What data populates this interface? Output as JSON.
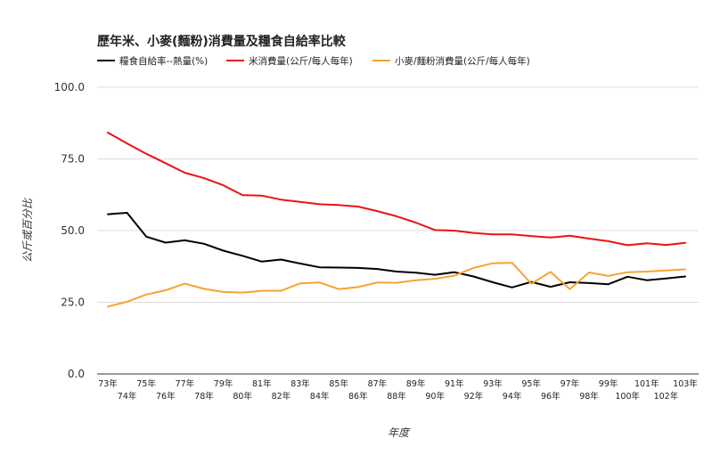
{
  "chart_data": {
    "type": "line",
    "title": "歷年米、小麥(麵粉)消費量及糧食自給率比較",
    "xlabel": "年度",
    "ylabel": "公斤或百分比",
    "ylim": [
      0,
      100
    ],
    "yticks": [
      "0.0",
      "25.0",
      "50.0",
      "75.0",
      "100.0"
    ],
    "ytick_values": [
      0,
      25,
      50,
      75,
      100
    ],
    "grid": true,
    "legend_position": "top-left",
    "categories": [
      "73年",
      "74年",
      "75年",
      "76年",
      "77年",
      "78年",
      "79年",
      "80年",
      "81年",
      "82年",
      "83年",
      "84年",
      "85年",
      "86年",
      "87年",
      "88年",
      "89年",
      "90年",
      "91年",
      "92年",
      "93年",
      "94年",
      "95年",
      "96年",
      "97年",
      "98年",
      "99年",
      "100年",
      "101年",
      "102年",
      "103年"
    ],
    "series": [
      {
        "name": "糧食自給率--熱量(%)",
        "color": "#000000",
        "values": [
          55.7,
          56.2,
          47.9,
          45.8,
          46.6,
          45.4,
          43.0,
          41.2,
          39.2,
          39.9,
          38.5,
          37.2,
          37.1,
          37.0,
          36.6,
          35.7,
          35.3,
          34.6,
          35.5,
          34.0,
          32.0,
          30.2,
          32.1,
          30.4,
          32.0,
          31.7,
          31.3,
          33.9,
          32.7,
          33.3,
          34.0
        ]
      },
      {
        "name": "米消費量(公斤/每人每年)",
        "color": "#ee1111",
        "values": [
          84.2,
          80.4,
          76.8,
          73.5,
          70.2,
          68.3,
          65.8,
          62.4,
          62.2,
          60.8,
          60.0,
          59.2,
          58.9,
          58.4,
          56.8,
          55.0,
          52.8,
          50.2,
          50.0,
          49.2,
          48.7,
          48.7,
          48.1,
          47.6,
          48.2,
          47.2,
          46.3,
          44.9,
          45.6,
          45.0,
          45.7
        ]
      },
      {
        "name": "小麥/麵粉消費量(公斤/每人每年)",
        "color": "#f7a331",
        "values": [
          23.5,
          25.2,
          27.7,
          29.2,
          31.5,
          29.7,
          28.6,
          28.4,
          29.0,
          29.0,
          31.6,
          31.9,
          29.6,
          30.3,
          31.9,
          31.8,
          32.7,
          33.2,
          34.3,
          37.0,
          38.6,
          38.8,
          31.5,
          35.6,
          29.6,
          35.4,
          34.2,
          35.5,
          35.7,
          36.1,
          36.5
        ]
      }
    ]
  }
}
